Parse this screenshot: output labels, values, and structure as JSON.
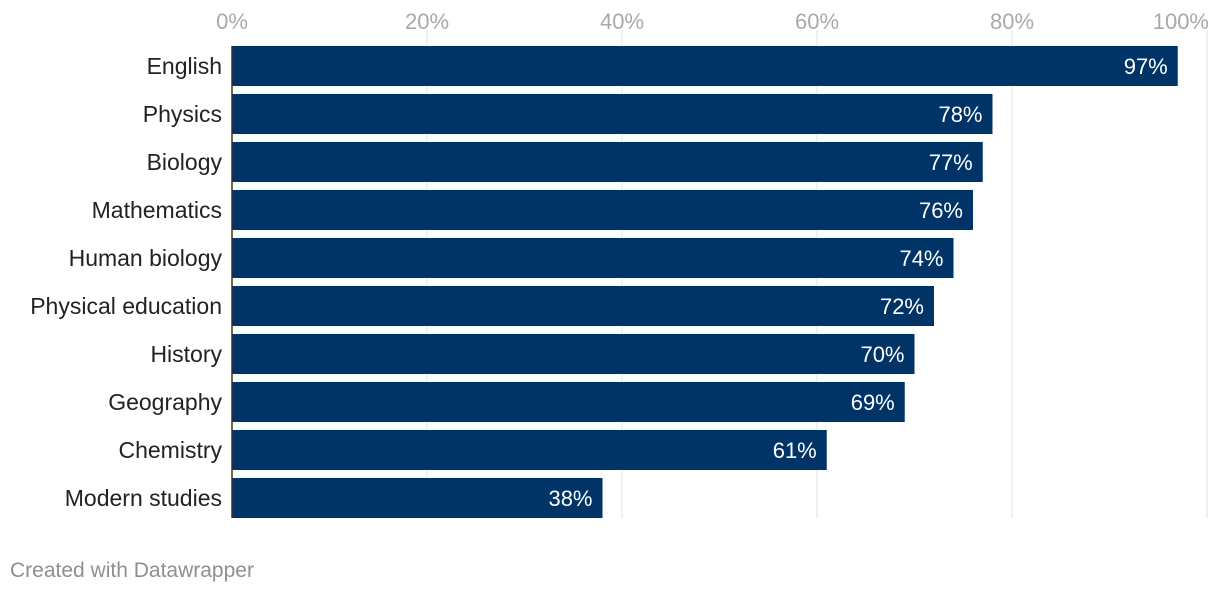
{
  "chart_data": {
    "type": "bar",
    "orientation": "horizontal",
    "categories": [
      "English",
      "Physics",
      "Biology",
      "Mathematics",
      "Human biology",
      "Physical education",
      "History",
      "Geography",
      "Chemistry",
      "Modern studies"
    ],
    "values": [
      97,
      78,
      77,
      76,
      74,
      72,
      70,
      69,
      61,
      38
    ],
    "value_labels": [
      "97%",
      "78%",
      "77%",
      "76%",
      "74%",
      "72%",
      "70%",
      "69%",
      "61%",
      "38%"
    ],
    "x_ticks": [
      0,
      20,
      40,
      60,
      80,
      100
    ],
    "x_tick_labels": [
      "0%",
      "20%",
      "40%",
      "60%",
      "80%",
      "100%"
    ],
    "xlim": [
      0,
      100
    ],
    "grid": true,
    "axis_position": "top",
    "bar_color": "#003366"
  },
  "footer": {
    "credit": "Created with Datawrapper"
  }
}
